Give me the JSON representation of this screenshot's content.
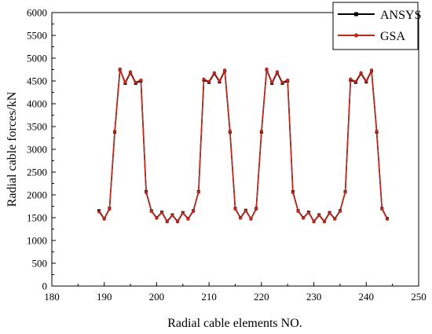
{
  "chart_data": {
    "type": "line",
    "xlabel": "Radial cable elements NO.",
    "ylabel": "Radial cable forces/kN",
    "xlim": [
      180,
      250
    ],
    "ylim": [
      0,
      6000
    ],
    "xticks": [
      "180",
      "190",
      "200",
      "210",
      "220",
      "230",
      "240",
      "250"
    ],
    "yticks": [
      "0",
      "500",
      "1000",
      "1500",
      "2000",
      "2500",
      "3000",
      "3500",
      "4000",
      "4500",
      "5000",
      "5500",
      "6000"
    ],
    "legend_position": "top-right",
    "grid": false,
    "x": [
      189,
      190,
      191,
      192,
      193,
      194,
      195,
      196,
      197,
      198,
      199,
      200,
      201,
      202,
      203,
      204,
      205,
      206,
      207,
      208,
      209,
      210,
      211,
      212,
      213,
      214,
      215,
      216,
      217,
      218,
      219,
      220,
      221,
      222,
      223,
      224,
      225,
      226,
      227,
      228,
      229,
      230,
      231,
      232,
      233,
      234,
      235,
      236,
      237,
      238,
      239,
      240,
      241,
      242,
      243,
      244
    ],
    "series": [
      {
        "name": "ANSYS",
        "color": "#000000",
        "marker": "square",
        "values": [
          1650,
          1480,
          1700,
          3380,
          4750,
          4450,
          4680,
          4450,
          4500,
          2070,
          1650,
          1500,
          1620,
          1420,
          1560,
          1420,
          1610,
          1480,
          1650,
          2070,
          4520,
          4470,
          4660,
          4480,
          4720,
          3380,
          1700,
          1500,
          1660,
          1480,
          1700,
          3380,
          4750,
          4450,
          4680,
          4450,
          4500,
          2070,
          1650,
          1500,
          1620,
          1420,
          1560,
          1420,
          1610,
          1480,
          1650,
          2070,
          4520,
          4470,
          4660,
          4480,
          4720,
          3380,
          1700,
          1480
        ]
      },
      {
        "name": "GSA",
        "color": "#c0281e",
        "marker": "circle",
        "values": [
          1630,
          1470,
          1690,
          3400,
          4760,
          4470,
          4700,
          4470,
          4520,
          2050,
          1640,
          1490,
          1610,
          1410,
          1550,
          1410,
          1600,
          1470,
          1640,
          2060,
          4540,
          4490,
          4680,
          4500,
          4740,
          3400,
          1690,
          1490,
          1650,
          1470,
          1690,
          3400,
          4760,
          4470,
          4700,
          4470,
          4520,
          2050,
          1640,
          1490,
          1610,
          1410,
          1550,
          1410,
          1600,
          1470,
          1640,
          2060,
          4540,
          4490,
          4680,
          4500,
          4740,
          3400,
          1690,
          1470
        ]
      }
    ]
  }
}
